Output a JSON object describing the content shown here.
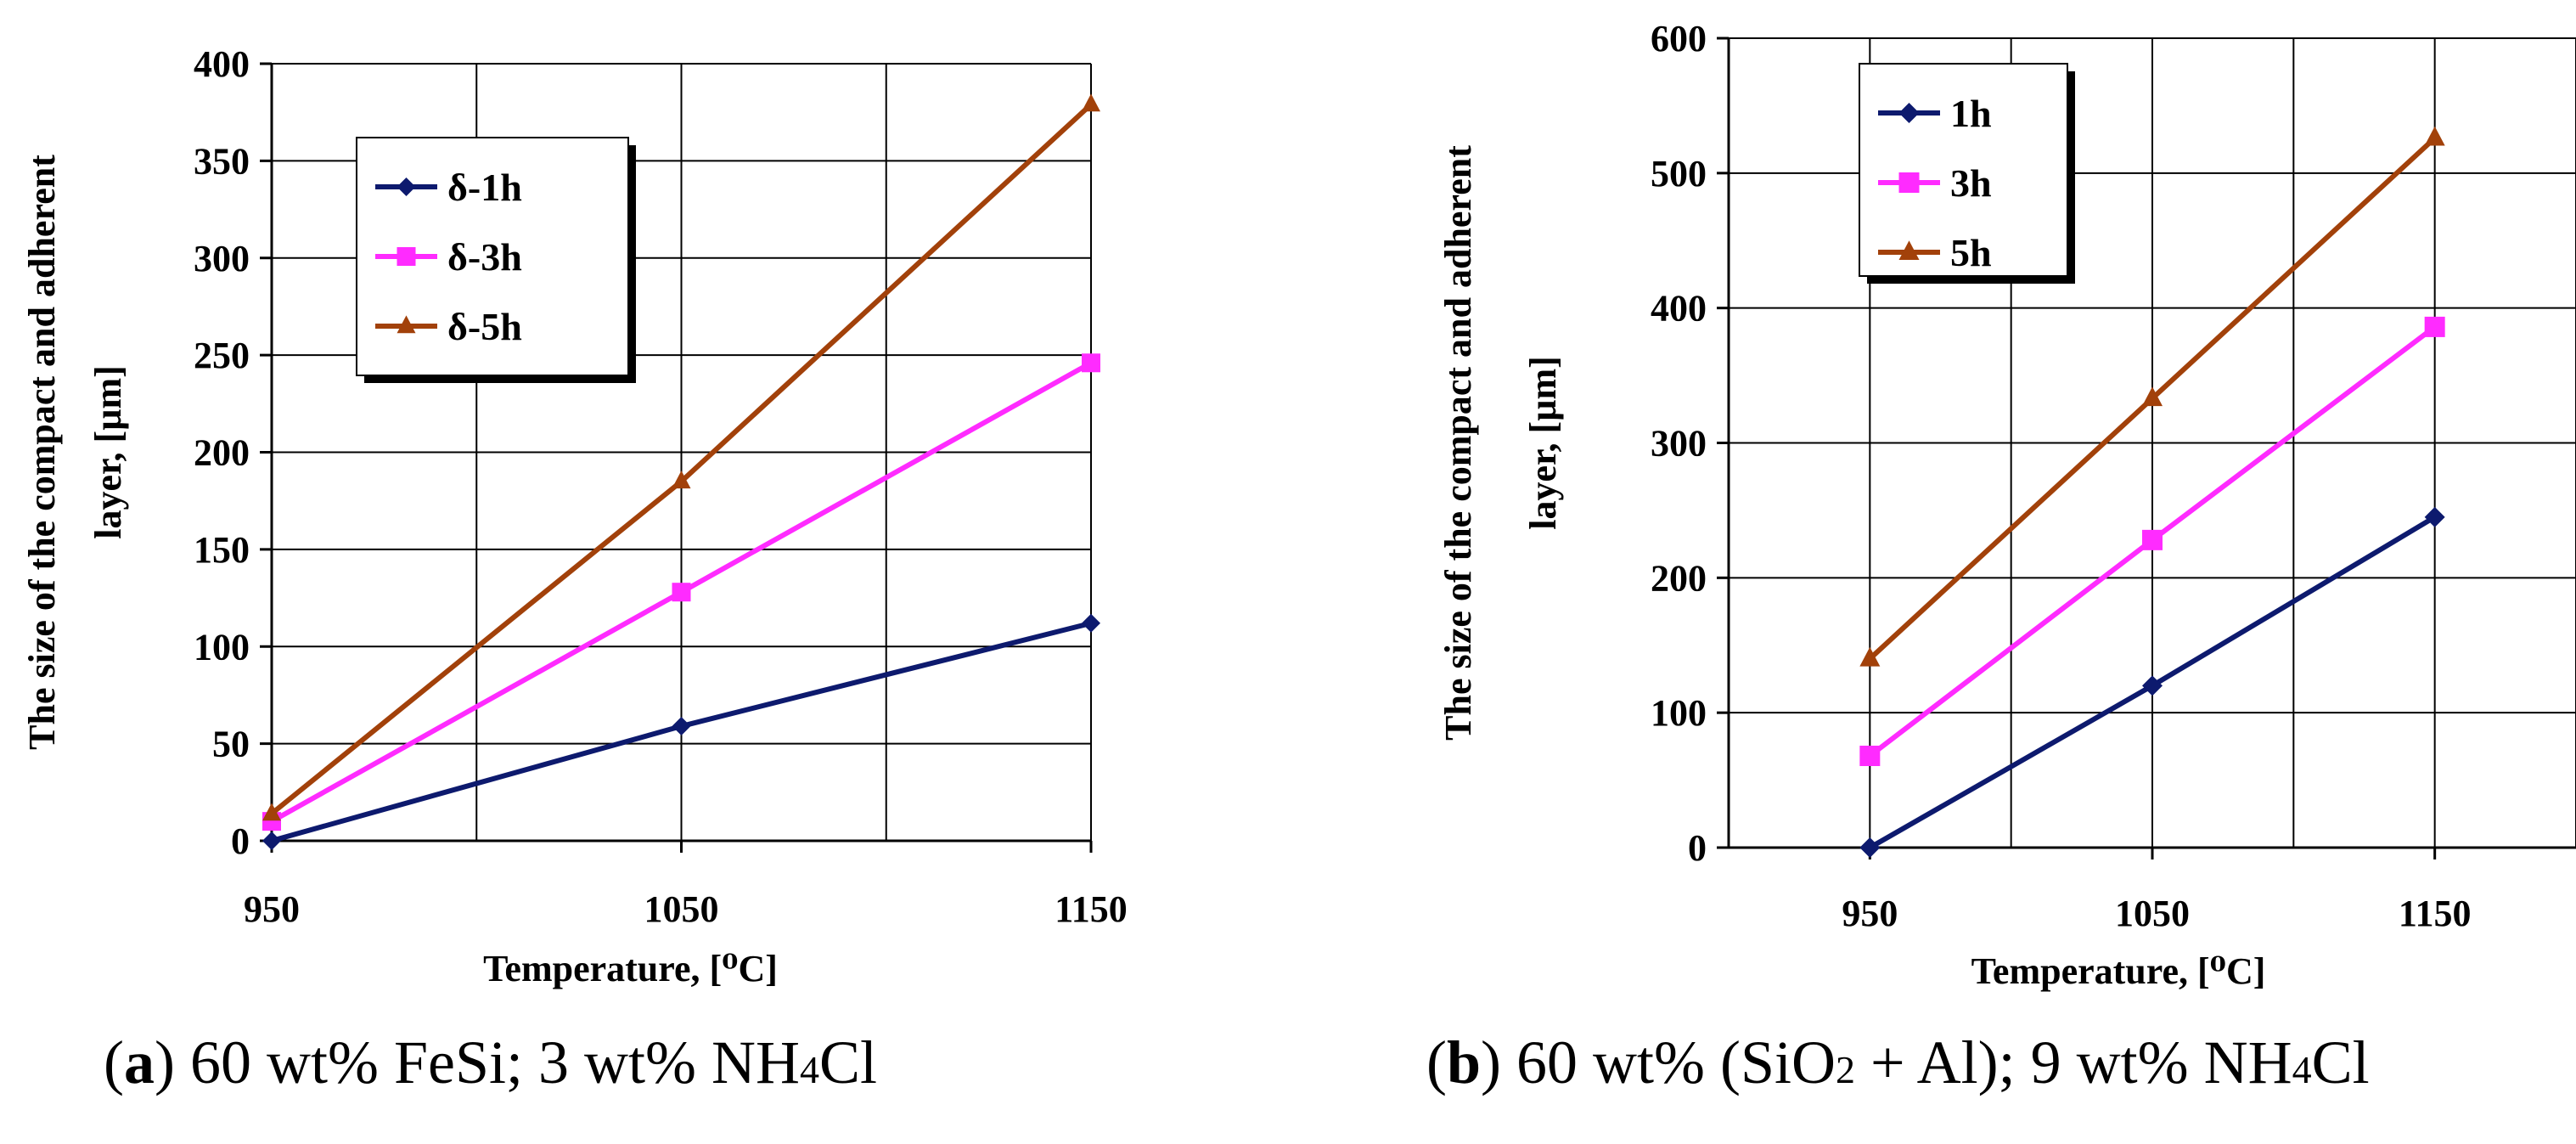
{
  "chart_data": [
    {
      "type": "line",
      "panel": "a",
      "title": "",
      "xlabel": "Temperature, [⁰C]",
      "ylabel_line1": "The size of the compact and adherent",
      "ylabel_line2": "layer, [µm]",
      "x": [
        950,
        1050,
        1150
      ],
      "xticks": [
        "950",
        "1050",
        "1150"
      ],
      "xlim": [
        950,
        1150
      ],
      "ylim": [
        0,
        400
      ],
      "yticks": [
        0,
        50,
        100,
        150,
        200,
        250,
        300,
        350,
        400
      ],
      "grid": true,
      "legend_position": "top-left",
      "series": [
        {
          "name": "δ-1h",
          "marker": "diamond",
          "color": "#0d1a6e",
          "values": [
            0,
            59,
            112
          ]
        },
        {
          "name": "δ-3h",
          "marker": "square",
          "color": "#ff2bff",
          "values": [
            10,
            128,
            246
          ]
        },
        {
          "name": "δ-5h",
          "marker": "triangle",
          "color": "#a2410a",
          "values": [
            14,
            185,
            379
          ]
        }
      ]
    },
    {
      "type": "line",
      "panel": "b",
      "title": "",
      "xlabel": "Temperature, [⁰C]",
      "ylabel_line1": "The size of the compact and adherent",
      "ylabel_line2": "layer, [µm]",
      "x": [
        950,
        1050,
        1150
      ],
      "xticks": [
        "950",
        "1050",
        "1150"
      ],
      "xlim": [
        900,
        1200
      ],
      "ylim": [
        0,
        600
      ],
      "yticks": [
        0,
        100,
        200,
        300,
        400,
        500,
        600
      ],
      "grid": true,
      "legend_position": "top-left",
      "series": [
        {
          "name": "1h",
          "marker": "diamond",
          "color": "#0d1a6e",
          "values": [
            0,
            120,
            245
          ]
        },
        {
          "name": "3h",
          "marker": "square",
          "color": "#ff2bff",
          "values": [
            68,
            228,
            386
          ]
        },
        {
          "name": "5h",
          "marker": "triangle",
          "color": "#a2410a",
          "values": [
            140,
            333,
            526
          ]
        }
      ]
    }
  ],
  "captions": {
    "a": {
      "label": "a",
      "before_sub": "60 wt% FeSi; 3 wt% NH",
      "sub": "4",
      "after_sub": "Cl"
    },
    "b": {
      "label": "b",
      "before_sub1": "60 wt% (SiO",
      "sub1": "2",
      "middle": " + Al); 9 wt% NH",
      "sub2": "4",
      "after_sub2": "Cl"
    }
  }
}
